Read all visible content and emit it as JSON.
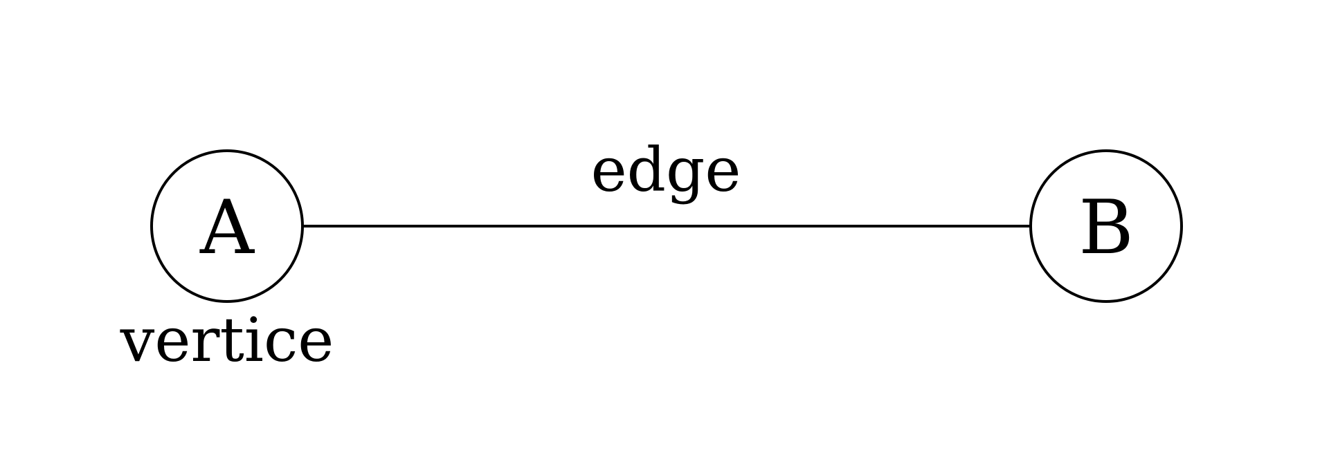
{
  "diagram": {
    "nodes": [
      {
        "id": "A",
        "label": "A"
      },
      {
        "id": "B",
        "label": "B"
      }
    ],
    "edges": [
      {
        "from": "A",
        "to": "B",
        "label": "edge"
      }
    ],
    "annotations": {
      "vertex_note": "vertice"
    },
    "colors": {
      "stroke": "#000000",
      "background": "#ffffff"
    }
  }
}
